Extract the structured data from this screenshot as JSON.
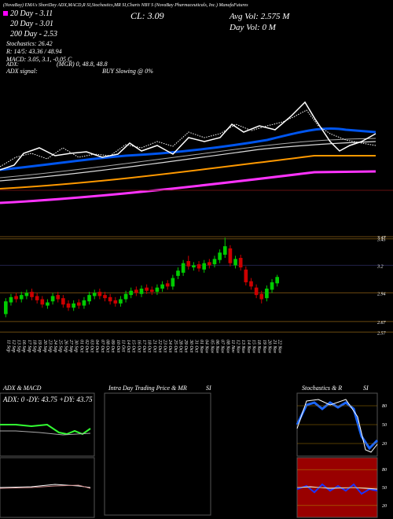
{
  "header": {
    "title": "(NovaBay) EMA's ShortDay ADX,MACD,R SI,Stochastics,MR SI,Charts NBY S (NovaBay Pharmaceuticals, Inc.) ManafaFutures",
    "ema_lines": [
      "20 Day - 3.11",
      "20 Day - 3.01",
      "200 Day - 2.53"
    ],
    "close": "CL: 3.09",
    "avg_vol": "Avg Vol: 2.575 M",
    "day_vol": "Day Vol: 0   M",
    "stochastics": "Stochastics: 26.42",
    "rsi": "R: 14/5: 43.36 / 48.94",
    "macd": "MACD: 3.05, 3.1, -0.05 C",
    "adx": "ADX:",
    "adx_values": "(MGR) 0, 48.8, 48.8",
    "adx_signal": "ADX  signal:",
    "signal": "BUY Slowing @ 0%"
  },
  "chart_data": {
    "type": "candlestick",
    "x": [
      "11 Sep",
      "12 Sep",
      "13 Sep",
      "16 Sep",
      "17 Sep",
      "18 Sep",
      "19 Sep",
      "20 Sep",
      "23 Sep",
      "24 Sep",
      "25 Sep",
      "26 Sep",
      "27 Sep",
      "30 Sep",
      "01 Oct",
      "02 Oct",
      "03 Oct",
      "04 Oct",
      "07 Oct",
      "08 Oct",
      "09 Oct",
      "10 Oct",
      "11 Oct",
      "14 Oct",
      "15 Oct",
      "16 Oct",
      "17 Oct",
      "18 Oct",
      "21 Oct",
      "22 Oct",
      "23 Oct",
      "24 Oct",
      "25 Oct",
      "28 Oct",
      "29 Oct",
      "30 Oct",
      "31 Oct",
      "01 Nov",
      "04 Nov",
      "05 Nov",
      "06 Nov",
      "07 Nov",
      "08 Nov",
      "11 Nov",
      "12 Nov",
      "13 Nov",
      "14 Nov",
      "15 Nov",
      "18 Nov",
      "19 Nov",
      "20 Nov",
      "21 Nov",
      "22 Nov"
    ],
    "open": [
      2.74,
      2.85,
      2.91,
      2.88,
      2.91,
      2.95,
      2.91,
      2.88,
      2.82,
      2.86,
      2.92,
      2.89,
      2.84,
      2.8,
      2.85,
      2.82,
      2.86,
      2.91,
      2.95,
      2.92,
      2.9,
      2.87,
      2.84,
      2.88,
      2.92,
      2.97,
      2.93,
      2.99,
      2.97,
      2.95,
      2.98,
      3.03,
      3.0,
      3.1,
      3.13,
      3.24,
      3.18,
      3.21,
      3.16,
      3.23,
      3.21,
      3.25,
      3.3,
      3.36,
      3.2,
      3.27,
      3.16,
      3.05,
      2.99,
      2.93,
      2.89,
      2.97,
      3.03
    ],
    "high": [
      2.89,
      2.93,
      2.94,
      2.95,
      2.97,
      2.98,
      2.94,
      2.91,
      2.88,
      2.94,
      2.95,
      2.92,
      2.87,
      2.87,
      2.88,
      2.9,
      2.95,
      2.97,
      2.98,
      2.95,
      2.93,
      2.9,
      2.91,
      2.96,
      2.99,
      3.0,
      3.01,
      3.02,
      3.0,
      3.02,
      3.05,
      3.06,
      3.11,
      3.18,
      3.25,
      3.29,
      3.23,
      3.24,
      3.25,
      3.26,
      3.29,
      3.35,
      3.46,
      3.39,
      3.29,
      3.3,
      3.19,
      3.08,
      3.02,
      2.96,
      3.01,
      3.07,
      3.11
    ],
    "low": [
      2.71,
      2.82,
      2.85,
      2.85,
      2.88,
      2.87,
      2.84,
      2.8,
      2.79,
      2.83,
      2.85,
      2.8,
      2.77,
      2.77,
      2.79,
      2.79,
      2.83,
      2.88,
      2.88,
      2.86,
      2.83,
      2.81,
      2.81,
      2.85,
      2.89,
      2.91,
      2.9,
      2.93,
      2.92,
      2.92,
      2.95,
      2.97,
      2.97,
      3.07,
      3.1,
      3.16,
      3.15,
      3.14,
      3.13,
      3.17,
      3.18,
      3.22,
      3.27,
      3.19,
      3.17,
      3.15,
      3.01,
      2.97,
      2.89,
      2.84,
      2.86,
      2.94,
      3.0
    ],
    "close": [
      2.86,
      2.9,
      2.88,
      2.92,
      2.94,
      2.9,
      2.87,
      2.83,
      2.85,
      2.91,
      2.88,
      2.83,
      2.8,
      2.84,
      2.82,
      2.87,
      2.92,
      2.94,
      2.91,
      2.89,
      2.86,
      2.84,
      2.88,
      2.93,
      2.96,
      2.94,
      2.98,
      2.96,
      2.95,
      2.99,
      3.02,
      3.0,
      3.08,
      3.15,
      3.22,
      3.19,
      3.2,
      3.17,
      3.22,
      3.2,
      3.26,
      3.32,
      3.38,
      3.22,
      3.26,
      3.18,
      3.04,
      3.0,
      2.92,
      2.88,
      2.98,
      3.04,
      3.09
    ],
    "up_color": "#00cc00",
    "down_color": "#cc0000",
    "ylim": [
      2.55,
      3.7
    ],
    "yticks": [
      3.47,
      3.45,
      3.2,
      2.94,
      2.67,
      2.57
    ],
    "grid": true
  },
  "panels": {
    "adx_title": "ADX  & MACD",
    "adx_label": "ADX: 0  -DY: 43.75  +DY: 43.75",
    "intraday_title": "Intra  Day Trading Price  & MR",
    "intraday_si": "SI",
    "stoch_title": "Stochastics & R",
    "stoch_si": "SI",
    "stoch_ylim": [
      0,
      100
    ],
    "stoch_yticks": [
      80,
      50,
      20
    ],
    "rsi_ylim": [
      0,
      100
    ],
    "rsi_yticks": [
      80,
      50,
      20
    ]
  }
}
